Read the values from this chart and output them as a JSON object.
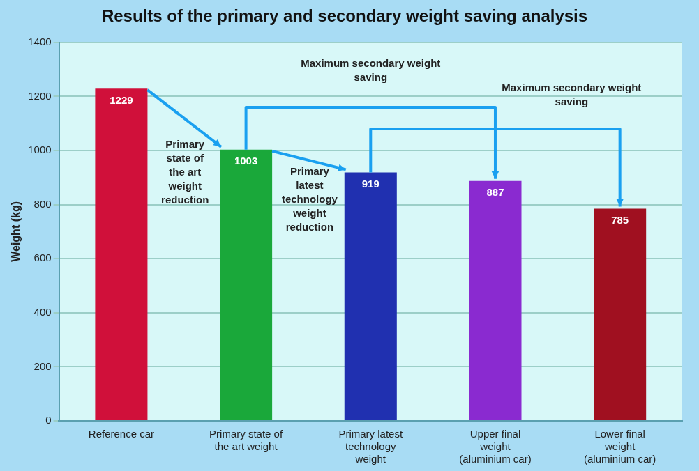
{
  "chart_data": {
    "type": "bar",
    "title": "Results of the primary and secondary weight saving analysis",
    "ylabel": "Weight (kg)",
    "categories": [
      "Reference car",
      "Primary state of the art weight",
      "Primary latest technology weight",
      "Upper final weight (aluminium car)",
      "Lower final weight (aluminium car)"
    ],
    "values": [
      1229,
      1003,
      919,
      887,
      785
    ],
    "colors": [
      "#d0103a",
      "#1aa83a",
      "#2030b0",
      "#8a2ad0",
      "#a01020"
    ],
    "ylim": [
      0,
      1400
    ],
    "yticks": [
      0,
      200,
      400,
      600,
      800,
      1000,
      1200,
      1400
    ],
    "grid": "y",
    "data_labels": true,
    "legend": false,
    "annotations": [
      "Primary state of the art weight reduction",
      "Primary latest technology weight reduction",
      "Maximum secondary weight saving",
      "Maximum secondary weight saving"
    ]
  }
}
